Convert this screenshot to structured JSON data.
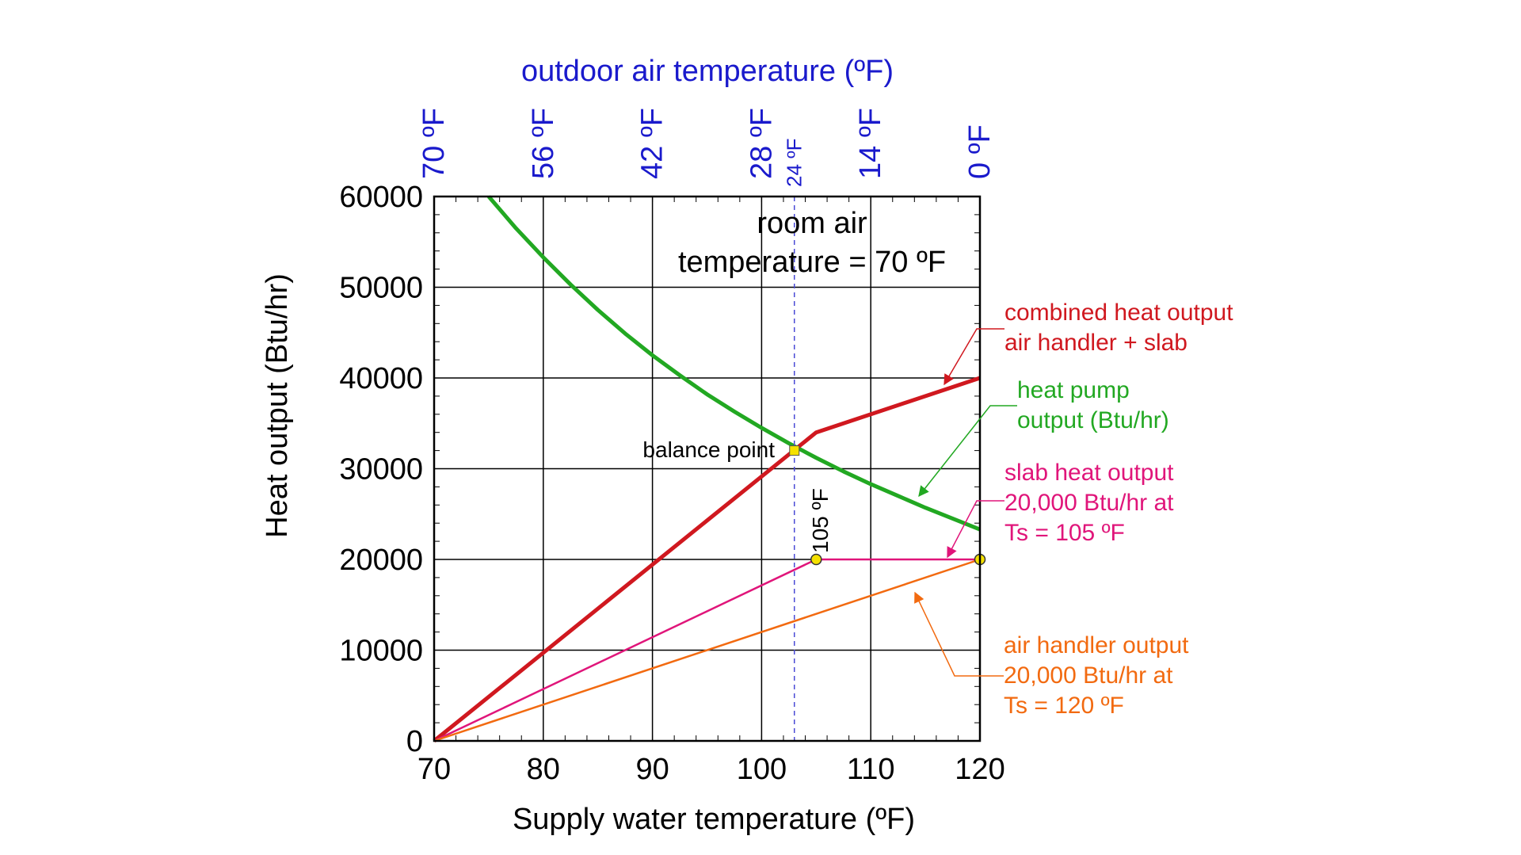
{
  "chart_data": {
    "type": "line",
    "xlabel": "Supply water temperature (ºF)",
    "ylabel": "Heat output (Btu/hr)",
    "xlim": [
      70,
      120
    ],
    "ylim": [
      0,
      60000
    ],
    "x_ticks": [
      70,
      80,
      90,
      100,
      110,
      120
    ],
    "y_ticks": [
      0,
      10000,
      20000,
      30000,
      40000,
      50000,
      60000
    ],
    "x_tick_labels": [
      "70",
      "80",
      "90",
      "100",
      "110",
      "120"
    ],
    "y_tick_labels": [
      "0",
      "10000",
      "20000",
      "30000",
      "40000",
      "50000",
      "60000"
    ],
    "grid": true,
    "top_axis": {
      "label": "outdoor air temperature (ºF)",
      "ticks": [
        {
          "x": 70,
          "label": "70 ºF"
        },
        {
          "x": 80,
          "label": "56 ºF"
        },
        {
          "x": 90,
          "label": "42 ºF"
        },
        {
          "x": 100,
          "label": "28 ºF"
        },
        {
          "x": 110,
          "label": "14 ºF"
        },
        {
          "x": 120,
          "label": "0 ºF"
        }
      ],
      "extra_tick": {
        "x": 103,
        "label": "24 ºF"
      }
    },
    "series": [
      {
        "key": "heat_pump",
        "color": "#22a822",
        "x": [
          75,
          77.5,
          80,
          82.5,
          85,
          87.5,
          90,
          92.5,
          95,
          97.5,
          100,
          102.5,
          105,
          107.5,
          110,
          112.5,
          115,
          117.5,
          120
        ],
        "y": [
          60000,
          56500,
          53300,
          50300,
          47500,
          44900,
          42500,
          40300,
          38200,
          36300,
          34500,
          32800,
          31200,
          29700,
          28300,
          27000,
          25700,
          24500,
          23300
        ]
      },
      {
        "key": "combined",
        "color": "#d0181f",
        "x": [
          70,
          105,
          120
        ],
        "y": [
          0,
          34000,
          40000
        ]
      },
      {
        "key": "slab",
        "color": "#e0157a",
        "x": [
          70,
          105,
          120
        ],
        "y": [
          0,
          20000,
          20000
        ]
      },
      {
        "key": "air_handler",
        "color": "#f26a10",
        "x": [
          70,
          120
        ],
        "y": [
          0,
          20000
        ]
      }
    ],
    "balance_point": {
      "x": 103,
      "y": 32000,
      "label": "balance point"
    },
    "markers": [
      {
        "x": 105,
        "y": 20000
      },
      {
        "x": 120,
        "y": 20000
      }
    ],
    "vline": {
      "x": 103,
      "color": "#4a4ad6"
    },
    "annotations": {
      "room_line1": "room air",
      "room_line2": "temperature = 70 ºF",
      "combined_line1": "combined heat output",
      "combined_line2": "air handler + slab",
      "heatpump_line1": "heat pump",
      "heatpump_line2": "output (Btu/hr)",
      "slab_line1": "slab heat output",
      "slab_line2": "20,000 Btu/hr at",
      "slab_line3": "Ts = 105 ºF",
      "air_line1": "air handler output",
      "air_line2": "20,000 Btu/hr at",
      "air_line3": "Ts = 120 ºF",
      "label_105": "105 ºF"
    },
    "colors": {
      "top_axis": "#1a1acc",
      "grid": "#000000",
      "marker_fill": "#f5e100"
    }
  }
}
